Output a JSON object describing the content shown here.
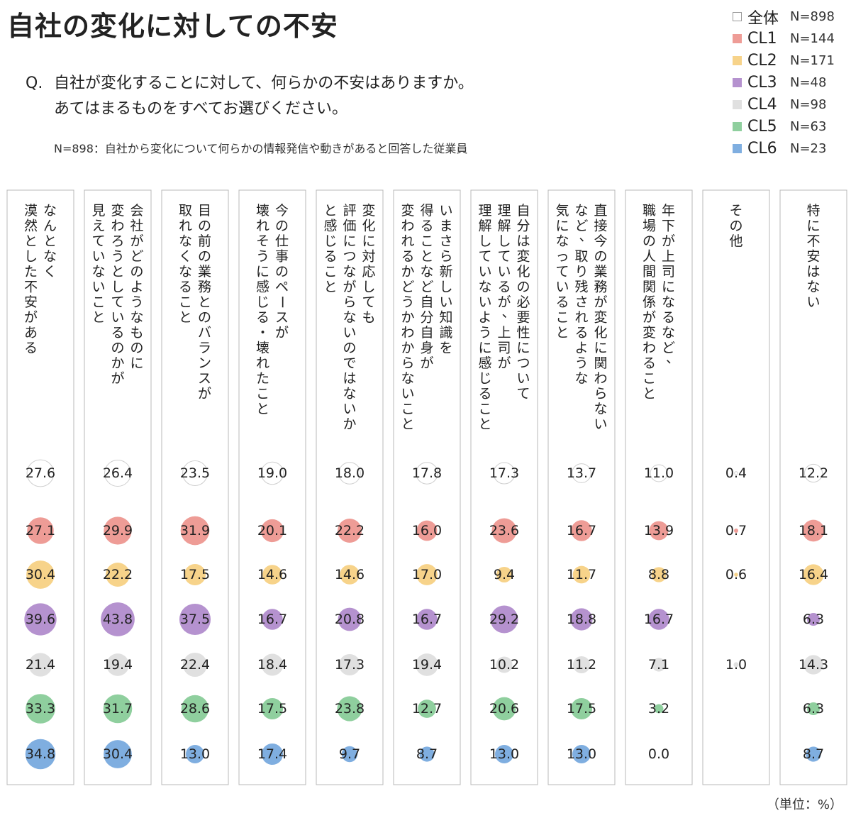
{
  "title": "自社の変化に対しての不安",
  "question": {
    "prefix": "Q.",
    "line1": "自社が変化することに対して、何らかの不安はありますか。",
    "line2": "あてはまるものをすべてお選びください。"
  },
  "note": "N=898：自社から変化について何らかの情報発信や動きがあると回答した従業員",
  "unit": "（単位：%）",
  "legend": [
    {
      "name": "全体",
      "n": "N=898",
      "color": "#ffffff"
    },
    {
      "name": "CL1",
      "n": "N=144",
      "color": "#ee9c96"
    },
    {
      "name": "CL2",
      "n": "N=171",
      "color": "#f7d38a"
    },
    {
      "name": "CL3",
      "n": "N=48",
      "color": "#b592cf"
    },
    {
      "name": "CL4",
      "n": "N=98",
      "color": "#e0e0e0"
    },
    {
      "name": "CL5",
      "n": "N=63",
      "color": "#8fcf9e"
    },
    {
      "name": "CL6",
      "n": "N=23",
      "color": "#7faee0"
    }
  ],
  "chart_data": {
    "type": "table",
    "series_names": [
      "全体",
      "CL1",
      "CL2",
      "CL3",
      "CL4",
      "CL5",
      "CL6"
    ],
    "columns": [
      {
        "lines": [
          "なんとなく",
          "漠然とした不安がある"
        ],
        "values": [
          "27.6",
          "27.1",
          "30.4",
          "39.6",
          "21.4",
          "33.3",
          "34.8"
        ]
      },
      {
        "lines": [
          "会社がどのようなものに",
          "変わろうとしているのかが",
          "見えていないこと"
        ],
        "values": [
          "26.4",
          "29.9",
          "22.2",
          "43.8",
          "19.4",
          "31.7",
          "30.4"
        ]
      },
      {
        "lines": [
          "目の前の業務とのバランスが",
          "取れなくなること"
        ],
        "values": [
          "23.5",
          "31.9",
          "17.5",
          "37.5",
          "22.4",
          "28.6",
          "13.0"
        ]
      },
      {
        "lines": [
          "今の仕事のペースが",
          "壊れそうに感じる・壊れたこと"
        ],
        "values": [
          "19.0",
          "20.1",
          "14.6",
          "16.7",
          "18.4",
          "17.5",
          "17.4"
        ]
      },
      {
        "lines": [
          "変化に対応しても",
          "評価につながらないのではないか",
          "と感じること"
        ],
        "values": [
          "18.0",
          "22.2",
          "14.6",
          "20.8",
          "17.3",
          "23.8",
          "9.7"
        ]
      },
      {
        "lines": [
          "いまさら新しい知識を",
          "得ることなど自分自身が",
          "変われるかどうかわからないこと"
        ],
        "values": [
          "17.8",
          "16.0",
          "17.0",
          "16.7",
          "19.4",
          "12.7",
          "8.7"
        ]
      },
      {
        "lines": [
          "自分は変化の必要性について",
          "理解しているが、上司が",
          "理解していないように感じること"
        ],
        "values": [
          "17.3",
          "23.6",
          "9.4",
          "29.2",
          "10.2",
          "20.6",
          "13.0"
        ]
      },
      {
        "lines": [
          "直接今の業務が変化に関わらない",
          "など、取り残されるような",
          "気になっていること"
        ],
        "values": [
          "13.7",
          "16.7",
          "11.7",
          "18.8",
          "11.2",
          "17.5",
          "13.0"
        ]
      },
      {
        "lines": [
          "年下が上司になるなど、",
          "職場の人間関係が変わること"
        ],
        "values": [
          "11.0",
          "13.9",
          "8.8",
          "16.7",
          "7.1",
          "3.2",
          "0.0"
        ]
      },
      {
        "lines": [
          "その他"
        ],
        "values": [
          "0.4",
          "0.7",
          "0.6",
          "",
          "1.0",
          "",
          ""
        ]
      },
      {
        "lines": [
          "特に不安はない"
        ],
        "values": [
          "12.2",
          "18.1",
          "16.4",
          "6.3",
          "14.3",
          "6.3",
          "8.7"
        ]
      }
    ]
  }
}
